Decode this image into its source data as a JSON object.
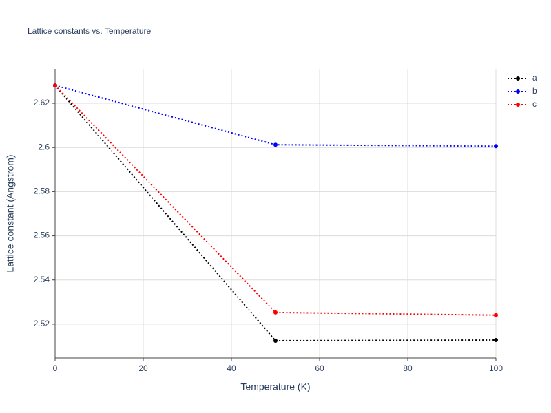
{
  "chart_data": {
    "type": "line",
    "title": "Lattice constants vs. Temperature",
    "x_label": "Temperature (K)",
    "y_label": "Lattice constant (Angstrom)",
    "x": [
      0,
      50,
      100
    ],
    "series": [
      {
        "name": "a",
        "color": "#000000",
        "values": [
          2.6281,
          2.5125,
          2.5128
        ]
      },
      {
        "name": "b",
        "color": "#0000ff",
        "values": [
          2.6281,
          2.60125,
          2.6006
        ]
      },
      {
        "name": "c",
        "color": "#ff0000",
        "values": [
          2.6281,
          2.5253,
          2.5241
        ]
      }
    ],
    "xlim": [
      0,
      100
    ],
    "xticks": [
      0,
      20,
      40,
      60,
      80,
      100
    ],
    "ylim": [
      2.5047,
      2.6356
    ],
    "yticks": [
      2.52,
      2.54,
      2.56,
      2.58,
      2.6,
      2.62
    ],
    "grid": true
  }
}
